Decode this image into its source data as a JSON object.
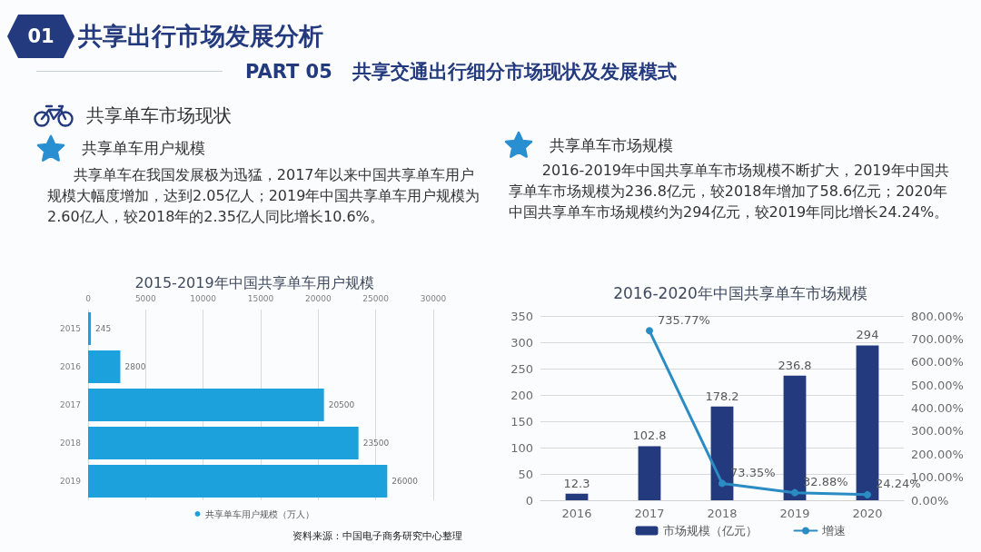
{
  "chart_data": [
    {
      "type": "other",
      "title": "共享出行市场发展分析",
      "subtitle": "PART 05   共享交通出行细分市场现状及发展模式",
      "annotations": [
        "01",
        "共享单车市场现状",
        "共享单车用户规模",
        "共享单车在我国发展极为迅猛，2017年以来中国共享单车用户规模大幅度增加，达到2.05亿人；2019年中国共享单车用户规模为2.60亿人，较2018年的2.35亿人同比增长10.6%。",
        "共享单车市场规模",
        "2016-2019年中国共享单车市场规模不断扩大，2019年中国共享单车市场规模为236.8亿元，较2018年增加了58.6亿元；2020年中国共享单车市场规模约为294亿元，较2019年同比增长24.24%。",
        "资料来源：中国电子商务研究中心整理"
      ]
    },
    {
      "type": "bar",
      "orientation": "horizontal",
      "title": "2015-2019年中国共享单车用户规模",
      "categories": [
        "2015",
        "2016",
        "2017",
        "2018",
        "2019"
      ],
      "series": [
        {
          "name": "共享单车用户规模（万人）",
          "color": "#1da1dc",
          "values": [
            245,
            2800,
            20500,
            23500,
            26000
          ]
        }
      ],
      "xlim": [
        0,
        30000
      ],
      "xticks": [
        0,
        5000,
        10000,
        15000,
        20000,
        25000,
        30000
      ],
      "grid": "x",
      "legend": "bottom",
      "data_labels": true
    },
    {
      "type": "bar",
      "title": "2016-2020年中国共享单车市场规模",
      "categories": [
        "2016",
        "2017",
        "2018",
        "2019",
        "2020"
      ],
      "series": [
        {
          "name": "市场规模（亿元）",
          "type": "bar",
          "color": "#243a7e",
          "values": [
            12.3,
            102.8,
            178.2,
            236.8,
            294
          ],
          "value_labels": [
            "12.3",
            "102.8",
            "178.2",
            "236.8",
            "294"
          ]
        },
        {
          "name": "增速",
          "type": "line",
          "axis": "y2",
          "color": "#2b8cc4",
          "values": [
            null,
            735.77,
            73.35,
            32.88,
            24.24
          ],
          "value_labels": [
            null,
            "735.77%",
            "73.35%",
            "32.88%",
            "24.24%"
          ]
        }
      ],
      "ylim": [
        0,
        350
      ],
      "yticks": [
        0,
        50,
        100,
        150,
        200,
        250,
        300,
        350
      ],
      "y2lim": [
        0,
        800
      ],
      "y2ticks": [
        {
          "value": 0,
          "label": "0.00%"
        },
        {
          "value": 100,
          "label": "100.00%"
        },
        {
          "value": 200,
          "label": "200.00%"
        },
        {
          "value": 300,
          "label": "300.00%"
        },
        {
          "value": 400,
          "label": "400.00%"
        },
        {
          "value": 500,
          "label": "500.00%"
        },
        {
          "value": 600,
          "label": "600.00%"
        },
        {
          "value": 700,
          "label": "700.00%"
        },
        {
          "value": 800,
          "label": "800.00%"
        }
      ],
      "grid": "y",
      "legend": "bottom",
      "marker": "circle"
    }
  ]
}
